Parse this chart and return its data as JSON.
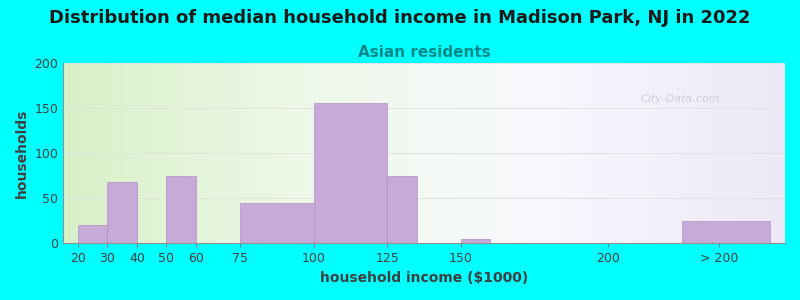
{
  "title": "Distribution of median household income in Madison Park, NJ in 2022",
  "subtitle": "Asian residents",
  "xlabel": "household income ($1000)",
  "ylabel": "households",
  "background_color": "#00FFFF",
  "bar_color": "#c8aad8",
  "bar_edge_color": "#b090c0",
  "watermark": "City-Data.com",
  "bar_starts": [
    20,
    30,
    50,
    75,
    100,
    125,
    150,
    225
  ],
  "bar_ends": [
    30,
    40,
    60,
    100,
    125,
    135,
    160,
    255
  ],
  "values": [
    20,
    68,
    75,
    45,
    155,
    75,
    5,
    25
  ],
  "tick_positions": [
    20,
    30,
    40,
    50,
    60,
    75,
    100,
    125,
    150,
    200,
    237.5
  ],
  "tick_labels": [
    "20",
    "30",
    "40",
    "50",
    "60",
    "75",
    "100",
    "125",
    "150",
    "200",
    "> 200"
  ],
  "xlim": [
    15,
    260
  ],
  "ylim": [
    0,
    200
  ],
  "yticks": [
    0,
    50,
    100,
    150,
    200
  ],
  "title_fontsize": 13,
  "subtitle_fontsize": 11,
  "axis_label_fontsize": 10,
  "tick_fontsize": 9,
  "subtitle_color": "#008888"
}
